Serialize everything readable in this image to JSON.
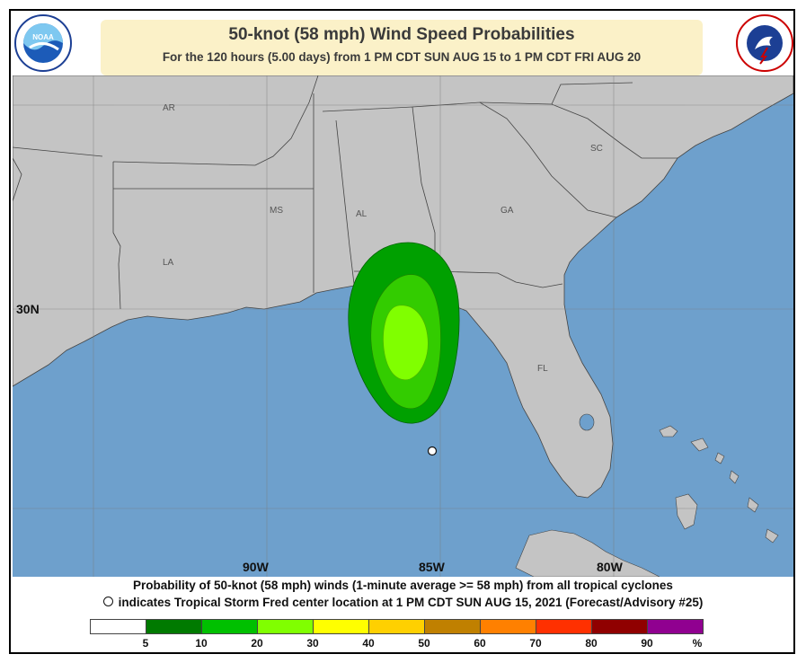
{
  "header": {
    "title": "50-knot (58 mph) Wind Speed Probabilities",
    "subtitle": "For the 120 hours (5.00 days) from 1 PM CDT SUN AUG 15 to 1 PM CDT FRI AUG 20",
    "left_logo": "NOAA",
    "right_logo_text": "NATIONAL WEATHER SERVICE"
  },
  "map": {
    "state_labels": [
      "AR",
      "MS",
      "AL",
      "GA",
      "SC",
      "LA",
      "FL"
    ],
    "lat_label": "30N",
    "lon_labels": [
      "90W",
      "85W",
      "80W"
    ],
    "colors": {
      "ocean": "#6ea0cc",
      "land": "#c4c4c4",
      "border": "#333333"
    }
  },
  "probability_contours": [
    {
      "level": "5-10%",
      "color": "#00a000"
    },
    {
      "level": "10-20%",
      "color": "#33cc00"
    },
    {
      "level": "20-30%",
      "color": "#80ff00"
    }
  ],
  "storm": {
    "name": "Tropical Storm Fred",
    "marker": "open-circle"
  },
  "footer": {
    "line1": "Probability of 50-knot (58 mph) winds (1-minute average >= 58 mph) from all tropical cyclones",
    "line2": "indicates Tropical Storm Fred center location at 1 PM CDT SUN AUG 15, 2021 (Forecast/Advisory #25)"
  },
  "legend": {
    "colors": [
      "#ffffff",
      "#007a00",
      "#00c000",
      "#80ff00",
      "#ffff00",
      "#ffd000",
      "#c08000",
      "#ff8000",
      "#ff3000",
      "#900000",
      "#900090"
    ],
    "ticks": [
      "5",
      "10",
      "20",
      "30",
      "40",
      "50",
      "60",
      "70",
      "80",
      "90",
      "%"
    ]
  }
}
